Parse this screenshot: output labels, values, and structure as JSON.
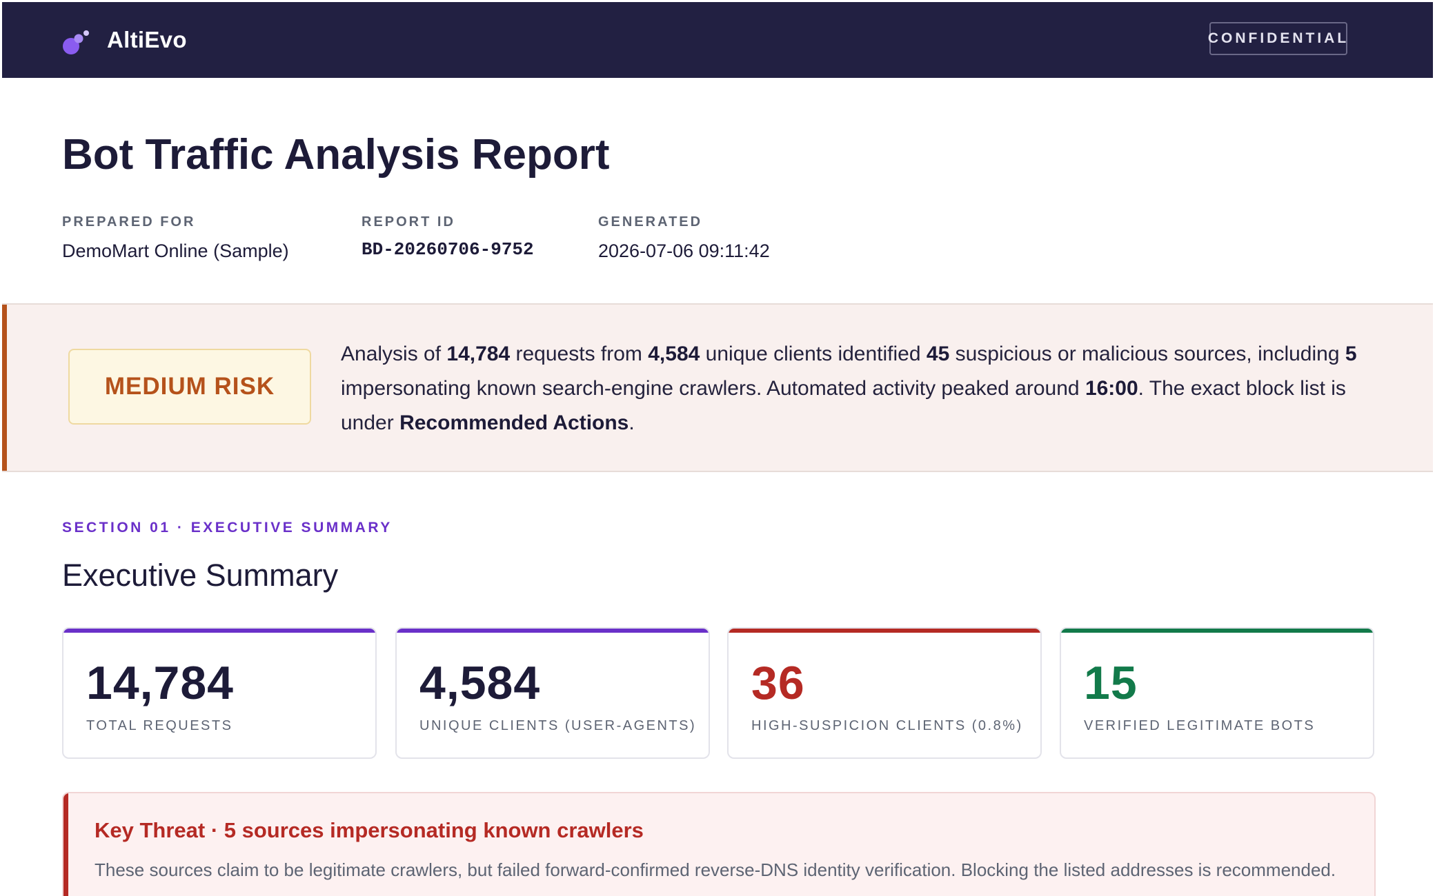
{
  "header": {
    "brand": "AltiEvo",
    "logo_icon": "molecule-logo-icon",
    "confidential_label": "CONFIDENTIAL"
  },
  "report": {
    "title": "Bot Traffic Analysis Report",
    "meta": [
      {
        "label": "PREPARED FOR",
        "value": "DemoMart Online (Sample)"
      },
      {
        "label": "REPORT ID",
        "value": "BD-20260706-9752"
      },
      {
        "label": "GENERATED",
        "value": "2026-07-06 09:11:42"
      }
    ]
  },
  "risk": {
    "badge": "MEDIUM RISK",
    "summary": {
      "p1": "Analysis of ",
      "requests": "14,784",
      "p2": " requests from ",
      "clients": "4,584",
      "p3": " unique clients identified ",
      "suspicious": "45",
      "p4": " suspicious or malicious sources, including ",
      "impersonating": "5",
      "p5": " impersonating known search-engine crawlers. Automated activity peaked around ",
      "peak": "16:00",
      "p6": ". The exact block list is under ",
      "link": "Recommended Actions",
      "p7": "."
    }
  },
  "section": {
    "eyebrow": "SECTION 01 · EXECUTIVE SUMMARY",
    "title": "Executive Summary"
  },
  "stats": [
    {
      "value": "14,784",
      "label": "TOTAL REQUESTS",
      "accent": "#6a30c9",
      "color": "#1d1b38"
    },
    {
      "value": "4,584",
      "label": "UNIQUE CLIENTS (USER-AGENTS)",
      "accent": "#6a30c9",
      "color": "#1d1b38"
    },
    {
      "value": "36",
      "label": "HIGH-SUSPICION CLIENTS (0.8%)",
      "accent": "#b52a24",
      "color": "#b52a24"
    },
    {
      "value": "15",
      "label": "VERIFIED LEGITIMATE BOTS",
      "accent": "#127a4a",
      "color": "#127a4a"
    }
  ],
  "threat": {
    "title": "Key Threat · 5 sources impersonating known crawlers",
    "body": "These sources claim to be legitimate crawlers, but failed forward-confirmed reverse-DNS identity verification. Blocking the listed addresses is recommended."
  },
  "colors": {
    "navbar": "#222042",
    "accent_purple": "#6a30c9",
    "risk_orange": "#b5521b",
    "danger_red": "#b52a24",
    "success_green": "#127a4a"
  }
}
